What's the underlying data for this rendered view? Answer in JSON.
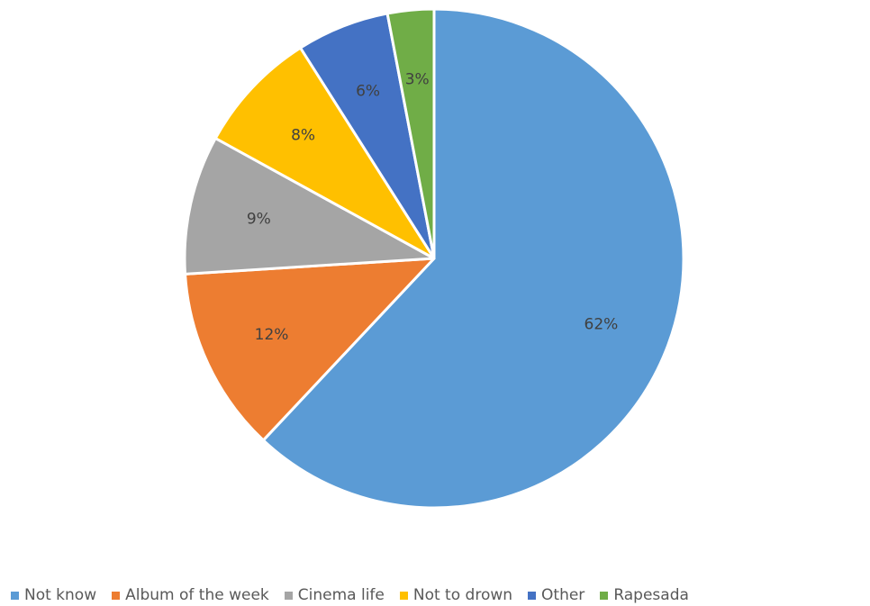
{
  "chart_data": {
    "type": "pie",
    "categories": [
      "Not know",
      "Album of the week",
      "Cinema life",
      "Not to drown",
      "Other",
      "Rapesada"
    ],
    "values": [
      62,
      12,
      9,
      8,
      6,
      3
    ],
    "data_labels": [
      "62%",
      "12%",
      "9%",
      "8%",
      "6%",
      "3%"
    ],
    "colors": [
      "#5B9BD5",
      "#ED7D31",
      "#A5A5A5",
      "#FFC000",
      "#4472C4",
      "#70AD47"
    ],
    "start_angle_deg": 0,
    "direction": "clockwise",
    "legend_position": "bottom",
    "title": ""
  }
}
